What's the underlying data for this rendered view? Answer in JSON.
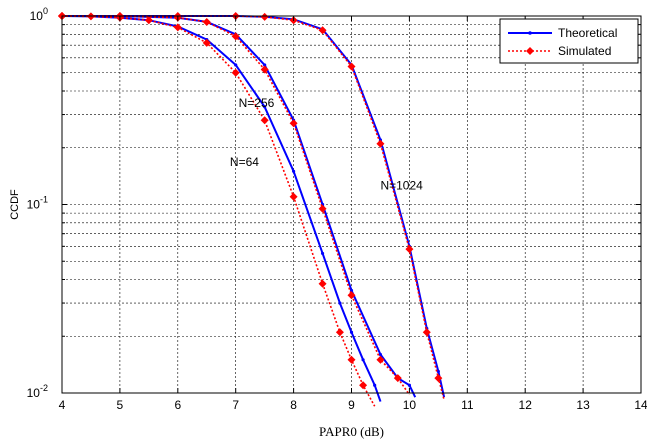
{
  "chart_data": {
    "type": "line",
    "xlabel": "PAPR0 (dB)",
    "ylabel": "CCDF",
    "xlim": [
      4,
      14
    ],
    "ylim": [
      0.01,
      1
    ],
    "yscale": "log",
    "grid": true,
    "x_ticks": [
      "4",
      "5",
      "6",
      "7",
      "8",
      "9",
      "10",
      "11",
      "12",
      "13",
      "14"
    ],
    "y_ticks": [
      {
        "base": "10",
        "exp": "0",
        "value": 1
      },
      {
        "base": "10",
        "exp": "-1",
        "value": 0.1
      },
      {
        "base": "10",
        "exp": "-2",
        "value": 0.01
      }
    ],
    "legend": {
      "position": "top-right",
      "entries": [
        {
          "label": "Theoretical",
          "color": "#0000ff",
          "style": "solid",
          "marker": "dot"
        },
        {
          "label": "Simulated",
          "color": "#ff0000",
          "style": "dotted",
          "marker": "diamond"
        }
      ]
    },
    "annotations": [
      {
        "text": "N=256",
        "x": 7.05,
        "y": 0.33
      },
      {
        "text": "N=64",
        "x": 6.9,
        "y": 0.16
      },
      {
        "text": "N=1024",
        "x": 9.5,
        "y": 0.12
      }
    ],
    "series": [
      {
        "curve": "N=64",
        "kind": "Theoretical",
        "color": "#0000ff",
        "x": [
          4.0,
          4.5,
          5.0,
          5.5,
          6.0,
          6.5,
          7.0,
          7.5,
          8.0,
          8.5,
          8.8,
          9.0,
          9.2,
          9.4,
          9.5
        ],
        "y": [
          1.0,
          0.995,
          0.98,
          0.95,
          0.88,
          0.75,
          0.55,
          0.33,
          0.15,
          0.055,
          0.03,
          0.021,
          0.015,
          0.011,
          0.009
        ]
      },
      {
        "curve": "N=64",
        "kind": "Simulated",
        "color": "#ff0000",
        "x": [
          4.0,
          4.5,
          5.0,
          5.5,
          6.0,
          6.5,
          7.0,
          7.5,
          8.0,
          8.5,
          8.8,
          9.0,
          9.2,
          9.4
        ],
        "y": [
          1.0,
          0.995,
          0.98,
          0.95,
          0.87,
          0.72,
          0.5,
          0.28,
          0.11,
          0.038,
          0.021,
          0.015,
          0.011,
          0.0085
        ]
      },
      {
        "curve": "N=256",
        "kind": "Theoretical",
        "color": "#0000ff",
        "x": [
          4.0,
          5.0,
          6.0,
          6.5,
          7.0,
          7.5,
          8.0,
          8.5,
          9.0,
          9.5,
          9.8,
          10.0,
          10.1
        ],
        "y": [
          1.0,
          1.0,
          0.98,
          0.93,
          0.8,
          0.55,
          0.28,
          0.1,
          0.035,
          0.016,
          0.012,
          0.011,
          0.0095
        ]
      },
      {
        "curve": "N=256",
        "kind": "Simulated",
        "color": "#ff0000",
        "x": [
          4.0,
          5.0,
          6.0,
          6.5,
          7.0,
          7.5,
          8.0,
          8.5,
          9.0,
          9.5,
          9.8,
          10.0
        ],
        "y": [
          1.0,
          1.0,
          0.98,
          0.93,
          0.78,
          0.52,
          0.27,
          0.095,
          0.033,
          0.015,
          0.012,
          0.0098
        ]
      },
      {
        "curve": "N=1024",
        "kind": "Theoretical",
        "color": "#0000ff",
        "x": [
          4.0,
          5.0,
          6.0,
          7.0,
          7.5,
          8.0,
          8.5,
          9.0,
          9.5,
          10.0,
          10.3,
          10.5,
          10.6
        ],
        "y": [
          1.0,
          1.0,
          1.0,
          1.0,
          0.99,
          0.96,
          0.85,
          0.55,
          0.22,
          0.06,
          0.022,
          0.013,
          0.0095
        ]
      },
      {
        "curve": "N=1024",
        "kind": "Simulated",
        "color": "#ff0000",
        "x": [
          4.0,
          5.0,
          6.0,
          7.0,
          7.5,
          8.0,
          8.5,
          9.0,
          9.5,
          10.0,
          10.3,
          10.5,
          10.6
        ],
        "y": [
          1.0,
          1.0,
          1.0,
          1.0,
          0.99,
          0.95,
          0.84,
          0.54,
          0.21,
          0.058,
          0.021,
          0.012,
          0.0092
        ]
      }
    ]
  }
}
